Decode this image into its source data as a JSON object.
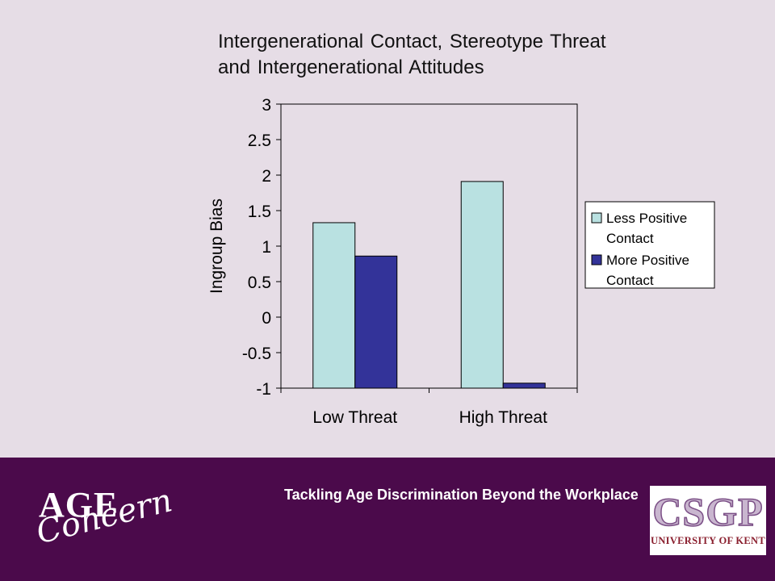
{
  "slide": {
    "title_line1": "Intergenerational Contact, Stereotype Threat",
    "title_line2": "and Intergenerational Attitudes"
  },
  "chart_data": {
    "type": "bar",
    "ylabel": "Ingroup Bias",
    "categories": [
      "Low Threat",
      "High Threat"
    ],
    "series": [
      {
        "name": "Less Positive Contact",
        "values": [
          1.33,
          1.91
        ],
        "color": "#b9e1e1"
      },
      {
        "name": "More Positive Contact",
        "values": [
          0.86,
          -0.93
        ],
        "color": "#333399"
      }
    ],
    "ylim": [
      -1,
      3
    ],
    "yticks": [
      3,
      2.5,
      2,
      1.5,
      1,
      0.5,
      0,
      -0.5,
      -1
    ],
    "ytick_labels": [
      "3",
      "2.5",
      "2",
      "1.5",
      "1",
      "0.5",
      "0",
      "-0.5",
      "-1"
    ],
    "legend": {
      "placement": "right",
      "entries": [
        {
          "line1": "Less Positive",
          "line2": "Contact"
        },
        {
          "line1": "More Positive",
          "line2": "Contact"
        }
      ]
    },
    "grid": false
  },
  "footer": {
    "tagline": "Tackling Age Discrimination Beyond the Workplace",
    "age_logo_word1": "AGE",
    "age_logo_word2": "Concern",
    "csgp_logo_word": "CSGP",
    "csgp_logo_subtitle": "UNIVERSITY OF KENT"
  },
  "colors": {
    "slide_background": "#e6dde6",
    "footer_band": "#4b0a4b"
  }
}
